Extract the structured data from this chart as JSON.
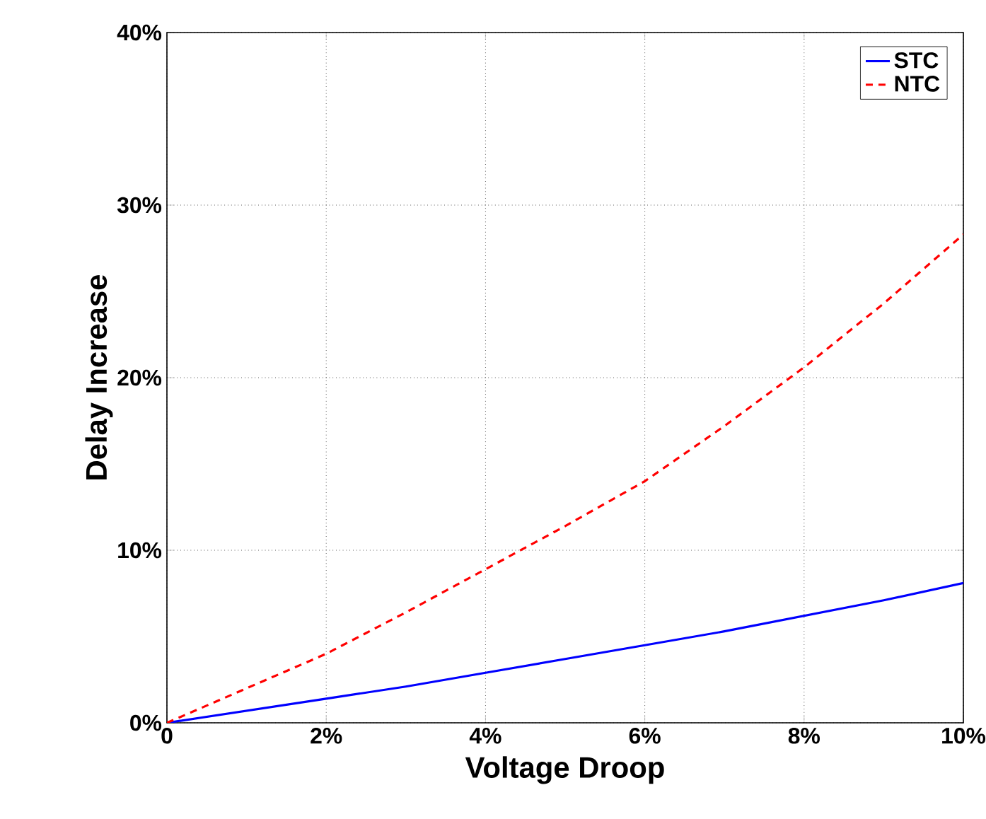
{
  "chart_data": {
    "type": "line",
    "xlabel": "Voltage Droop",
    "ylabel": "Delay Increase",
    "x": [
      0,
      1,
      2,
      3,
      4,
      5,
      6,
      7,
      8,
      9,
      10
    ],
    "series": [
      {
        "name": "STC",
        "color": "#0000ff",
        "line_style": "solid",
        "values": [
          0,
          0.7,
          1.4,
          2.1,
          2.9,
          3.7,
          4.5,
          5.3,
          6.2,
          7.1,
          8.1
        ]
      },
      {
        "name": "NTC",
        "color": "#ff0000",
        "line_style": "dashed",
        "values": [
          0,
          2.0,
          4.0,
          6.4,
          8.9,
          11.4,
          14.0,
          17.2,
          20.6,
          24.3,
          28.3
        ]
      }
    ],
    "xlim": [
      0,
      10
    ],
    "ylim": [
      0,
      40
    ],
    "xticks": [
      {
        "value": 0,
        "label": "0"
      },
      {
        "value": 2,
        "label": "2%"
      },
      {
        "value": 4,
        "label": "4%"
      },
      {
        "value": 6,
        "label": "6%"
      },
      {
        "value": 8,
        "label": "8%"
      },
      {
        "value": 10,
        "label": "10%"
      }
    ],
    "yticks": [
      {
        "value": 0,
        "label": "0%"
      },
      {
        "value": 10,
        "label": "10%"
      },
      {
        "value": 20,
        "label": "20%"
      },
      {
        "value": 30,
        "label": "30%"
      },
      {
        "value": 40,
        "label": "40%"
      }
    ],
    "grid": true,
    "legend": "top right",
    "marker": "none"
  }
}
